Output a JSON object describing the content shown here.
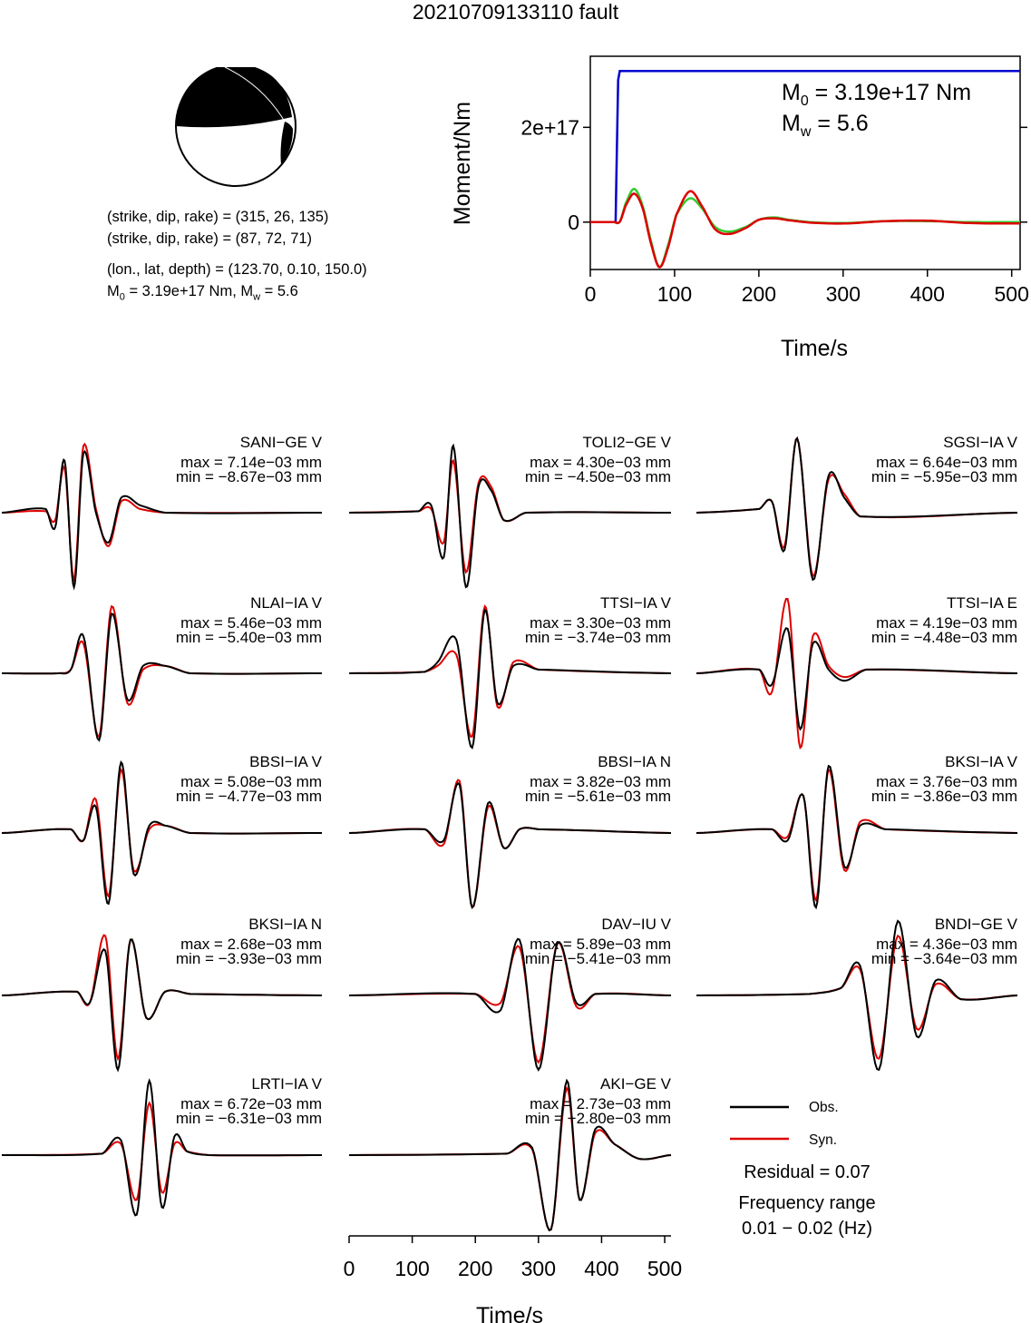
{
  "title": "20210709133110 fault",
  "mechanism": {
    "plane1": "(strike, dip, rake) = (315, 26, 135)",
    "plane2": "(strike, dip, rake) = (87, 72, 71)",
    "location": "(lon., lat, depth) = (123.70, 0.10, 150.0)",
    "moment_line_prefix": "M",
    "moment_line_sub0": "0",
    "moment_line_mid": " = 3.19e+17 Nm, M",
    "moment_line_subw": "w",
    "moment_line_end": " = 5.6"
  },
  "stf_panel": {
    "annot_m0_prefix": "M",
    "annot_m0_sub": "0",
    "annot_m0_value": " = 3.19e+17 Nm",
    "annot_mw_prefix": "M",
    "annot_mw_sub": "w",
    "annot_mw_value": " = 5.6"
  },
  "chart_data": [
    {
      "type": "line",
      "xlabel": "Time/s",
      "ylabel": "Moment/Nm",
      "xlim": [
        0,
        510
      ],
      "ylim": [
        -1e+17,
        3.5e+17
      ],
      "x_ticks": [
        "0",
        "100",
        "200",
        "300",
        "400",
        "500"
      ],
      "y_ticks": [
        "0",
        "2e+17"
      ],
      "grid": false,
      "series": [
        {
          "color": "#0000cc",
          "x": [
            0,
            30,
            31,
            33,
            35,
            510
          ],
          "y": [
            0,
            0,
            1e+17,
            3e+17,
            3.19e+17,
            3.19e+17
          ]
        },
        {
          "color": "#33cc33",
          "x": [
            0,
            28,
            35,
            42,
            52,
            62,
            72,
            82,
            92,
            102,
            118,
            132,
            148,
            165,
            185,
            200,
            218,
            235,
            260,
            300,
            350,
            400,
            450,
            510
          ],
          "y": [
            0,
            0,
            1000000000000000.0,
            4e+16,
            7e+16,
            3.5e+16,
            -4e+16,
            -9.5e+16,
            -5e+16,
            1.5e+16,
            5e+16,
            3e+16,
            -1e+16,
            -2e+16,
            -1e+16,
            5000000000000000.0,
            1e+16,
            5000000000000000.0,
            0,
            -2000000000000000.0,
            2000000000000000.0,
            2000000000000000.0,
            0,
            0
          ]
        },
        {
          "color": "#dd0000",
          "x": [
            0,
            28,
            35,
            42,
            52,
            62,
            72,
            82,
            92,
            102,
            118,
            132,
            148,
            165,
            185,
            200,
            218,
            235,
            260,
            300,
            350,
            400,
            450,
            510
          ],
          "y": [
            0,
            0,
            1000000000000000.0,
            3.5e+16,
            6e+16,
            3e+16,
            -4.5e+16,
            -9.5e+16,
            -5.5e+16,
            1.5e+16,
            6.5e+16,
            3.5e+16,
            -1.5e+16,
            -2.5e+16,
            -1.2e+16,
            5000000000000000.0,
            8000000000000000.0,
            4000000000000000.0,
            -1000000000000000.0,
            -3000000000000000.0,
            2000000000000000.0,
            3000000000000000.0,
            -2000000000000000.0,
            -3000000000000000.0
          ]
        }
      ]
    },
    {
      "type": "line",
      "xlabel": "Time/s",
      "xlim": [
        0,
        510
      ],
      "x_ticks": [
        "0",
        "100",
        "200",
        "300",
        "400",
        "500"
      ],
      "series_names": [
        "Obs.",
        "Syn."
      ],
      "waveforms": [
        {
          "station": "SANI−GE V",
          "max": "max = 7.14e−03 mm",
          "min": "min = −8.67e−03 mm",
          "t": [
            0,
            70,
            85,
            100,
            115,
            130,
            150,
            170,
            190,
            220,
            260,
            510
          ],
          "obs": [
            0,
            0.05,
            -0.2,
            0.7,
            -1.0,
            0.8,
            0.0,
            -0.4,
            0.2,
            0.1,
            0,
            0
          ],
          "syn": [
            0,
            0.02,
            -0.1,
            0.6,
            -0.9,
            0.9,
            0.05,
            -0.45,
            0.15,
            0.05,
            0,
            0
          ]
        },
        {
          "station": "TOLI2−GE V",
          "max": "max = 4.30e−03 mm",
          "min": "min = −4.50e−03 mm",
          "t": [
            0,
            110,
            130,
            150,
            165,
            185,
            205,
            225,
            245,
            280,
            510
          ],
          "obs": [
            0,
            0.02,
            0.1,
            -0.6,
            0.9,
            -1.0,
            0.35,
            0.3,
            -0.1,
            0,
            0
          ],
          "syn": [
            0,
            0.02,
            0.05,
            -0.4,
            0.7,
            -0.8,
            0.4,
            0.35,
            -0.1,
            0,
            0
          ]
        },
        {
          "station": "SGSI−IA V",
          "max": "max = 6.64e−03 mm",
          "min": "min = −5.95e−03 mm",
          "t": [
            0,
            100,
            120,
            140,
            160,
            185,
            210,
            235,
            260,
            510
          ],
          "obs": [
            0,
            0.05,
            0.15,
            -0.5,
            1.0,
            -0.9,
            0.5,
            0.2,
            -0.05,
            0
          ],
          "syn": [
            0,
            0.05,
            0.15,
            -0.45,
            1.0,
            -0.85,
            0.45,
            0.25,
            -0.05,
            0
          ]
        },
        {
          "station": "NLAI−IA V",
          "max": "max = 5.46e−03 mm",
          "min": "min = −5.40e−03 mm",
          "t": [
            0,
            90,
            110,
            130,
            155,
            175,
            200,
            225,
            260,
            300,
            510
          ],
          "obs": [
            0,
            0,
            0.05,
            0.5,
            -0.9,
            0.8,
            -0.35,
            0.1,
            0.1,
            0,
            0
          ],
          "syn": [
            0,
            0,
            0.05,
            0.4,
            -0.85,
            0.9,
            -0.4,
            0.05,
            0.1,
            0,
            0
          ]
        },
        {
          "station": "TTSI−IA V",
          "max": "max = 3.30e−03 mm",
          "min": "min = −3.74e−03 mm",
          "t": [
            0,
            120,
            140,
            170,
            195,
            215,
            235,
            260,
            300,
            510
          ],
          "obs": [
            0,
            0.02,
            0.15,
            0.45,
            -1.0,
            0.85,
            -0.4,
            0.1,
            0.05,
            0
          ],
          "syn": [
            0,
            0.02,
            0.1,
            0.25,
            -0.85,
            0.9,
            -0.45,
            0.15,
            0.05,
            0
          ]
        },
        {
          "station": "TTSI−IA E",
          "max": "max = 4.19e−03 mm",
          "min": "min = −4.48e−03 mm",
          "t": [
            0,
            100,
            120,
            145,
            165,
            185,
            210,
            235,
            270,
            510
          ],
          "obs": [
            0,
            0.05,
            -0.15,
            0.6,
            -0.75,
            0.4,
            0.05,
            -0.1,
            0.05,
            0
          ],
          "syn": [
            0,
            0.05,
            -0.25,
            1.0,
            -1.0,
            0.5,
            0.1,
            -0.05,
            0.05,
            0
          ]
        },
        {
          "station": "BBSI−IA V",
          "max": "max = 5.08e−03 mm",
          "min": "min = −4.77e−03 mm",
          "t": [
            0,
            110,
            130,
            150,
            170,
            190,
            210,
            235,
            260,
            300,
            510
          ],
          "obs": [
            0,
            0.05,
            -0.1,
            0.35,
            -0.95,
            0.95,
            -0.55,
            0.1,
            0.1,
            0,
            0
          ],
          "syn": [
            0,
            0.05,
            -0.1,
            0.45,
            -0.85,
            0.85,
            -0.5,
            0.05,
            0.1,
            0,
            0
          ]
        },
        {
          "station": "BBSI−IA N",
          "max": "max = 3.82e−03 mm",
          "min": "min = −5.61e−03 mm",
          "t": [
            0,
            120,
            150,
            175,
            195,
            220,
            245,
            270,
            300,
            510
          ],
          "obs": [
            0,
            0.05,
            -0.1,
            0.65,
            -1.0,
            0.4,
            -0.2,
            0.05,
            0.05,
            0
          ],
          "syn": [
            0,
            0.05,
            -0.15,
            0.7,
            -1.0,
            0.35,
            -0.2,
            0.05,
            0.05,
            0
          ]
        },
        {
          "station": "BKSI−IA V",
          "max": "max = 3.76e−03 mm",
          "min": "min = −3.86e−03 mm",
          "t": [
            0,
            120,
            145,
            170,
            190,
            210,
            235,
            260,
            300,
            510
          ],
          "obs": [
            0,
            0.05,
            -0.1,
            0.5,
            -1.0,
            0.9,
            -0.45,
            0.1,
            0.05,
            0
          ],
          "syn": [
            0,
            0.05,
            -0.05,
            0.5,
            -0.9,
            0.85,
            -0.5,
            0.15,
            0.05,
            0
          ]
        },
        {
          "station": "BKSI−IA N",
          "max": "max = 2.68e−03 mm",
          "min": "min = −3.93e−03 mm",
          "t": [
            0,
            120,
            140,
            165,
            185,
            205,
            230,
            260,
            300,
            510
          ],
          "obs": [
            0,
            0.05,
            -0.1,
            0.6,
            -1.0,
            0.75,
            -0.3,
            0.05,
            0.02,
            0
          ],
          "syn": [
            0,
            0.05,
            -0.1,
            0.8,
            -0.85,
            0.75,
            -0.3,
            0.05,
            0.02,
            0
          ]
        },
        {
          "station": "DAV−IU V",
          "max": "max = 5.89e−03 mm",
          "min": "min = −5.41e−03 mm",
          "t": [
            0,
            200,
            240,
            270,
            300,
            330,
            360,
            390,
            510
          ],
          "obs": [
            0,
            0.02,
            -0.2,
            0.75,
            -1.0,
            0.7,
            -0.1,
            0.02,
            0
          ],
          "syn": [
            0,
            0.02,
            -0.1,
            0.65,
            -0.9,
            0.7,
            -0.15,
            0.02,
            0
          ]
        },
        {
          "station": "BNDI−GE V",
          "max": "max = 4.36e−03 mm",
          "min": "min = −3.64e−03 mm",
          "t": [
            0,
            180,
            230,
            260,
            290,
            320,
            350,
            380,
            420,
            510
          ],
          "obs": [
            0,
            0.02,
            0.1,
            0.4,
            -1.0,
            1.0,
            -0.55,
            0.2,
            -0.05,
            0
          ],
          "syn": [
            0,
            0.02,
            0.1,
            0.35,
            -0.85,
            0.8,
            -0.45,
            0.15,
            -0.05,
            0
          ]
        },
        {
          "station": "LRTI−IA V",
          "max": "max = 6.72e−03 mm",
          "min": "min = −6.31e−03 mm",
          "t": [
            0,
            160,
            190,
            215,
            235,
            255,
            275,
            295,
            330,
            510
          ],
          "obs": [
            0,
            0.02,
            0.2,
            -0.8,
            1.0,
            -0.7,
            0.25,
            0.05,
            0,
            0
          ],
          "syn": [
            0,
            0.02,
            0.15,
            -0.6,
            0.7,
            -0.5,
            0.15,
            0.05,
            0,
            0
          ]
        },
        {
          "station": "AKI−GE V",
          "max": "max = 2.73e−03 mm",
          "min": "min = −2.80e−03 mm",
          "t": [
            0,
            250,
            290,
            320,
            345,
            365,
            390,
            420,
            460,
            510
          ],
          "obs": [
            0,
            0.02,
            0.1,
            -1.0,
            1.0,
            -0.6,
            0.35,
            0.15,
            -0.05,
            0
          ],
          "syn": [
            0,
            0.02,
            0.08,
            -1.0,
            0.9,
            -0.6,
            0.3,
            0.15,
            -0.05,
            0
          ]
        }
      ]
    }
  ],
  "legend": {
    "obs_label": "Obs.",
    "syn_label": "Syn.",
    "obs_color": "#000000",
    "syn_color": "#dd0000"
  },
  "residual": "Residual = 0.07",
  "freq_title": "Frequency range",
  "freq_value": "0.01 − 0.02 (Hz)"
}
